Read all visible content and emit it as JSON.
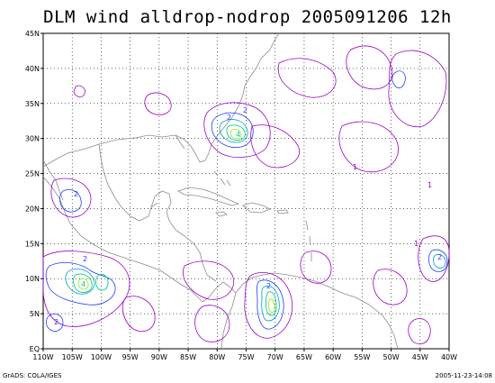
{
  "title": "DLM wind alldrop-nodrop 2005091206 12h",
  "footer": {
    "left": "GrADS: COLA/IGES",
    "right": "2005-11-23-14:08"
  },
  "axes": {
    "lat_ticks": [
      "EQ",
      "5N",
      "10N",
      "15N",
      "20N",
      "25N",
      "30N",
      "35N",
      "40N",
      "45N"
    ],
    "lon_ticks": [
      "110W",
      "105W",
      "100W",
      "95W",
      "90W",
      "85W",
      "80W",
      "75W",
      "70W",
      "65W",
      "60W",
      "55W",
      "50W",
      "45W",
      "40W"
    ],
    "lat_range": [
      0,
      45
    ],
    "lon_range": [
      -110,
      -40
    ],
    "grid": "dotted"
  },
  "contour_labels": [
    "2",
    "2",
    "4",
    "2",
    "2",
    "4",
    "2",
    "2",
    "1",
    "1",
    "2",
    "1"
  ],
  "colors": {
    "coast": "#8c8c8c",
    "level1": "#a000c8",
    "level2": "#1e3cff",
    "level3": "#00a0c8",
    "level4": "#00d28c",
    "level5": "#a0e632"
  }
}
